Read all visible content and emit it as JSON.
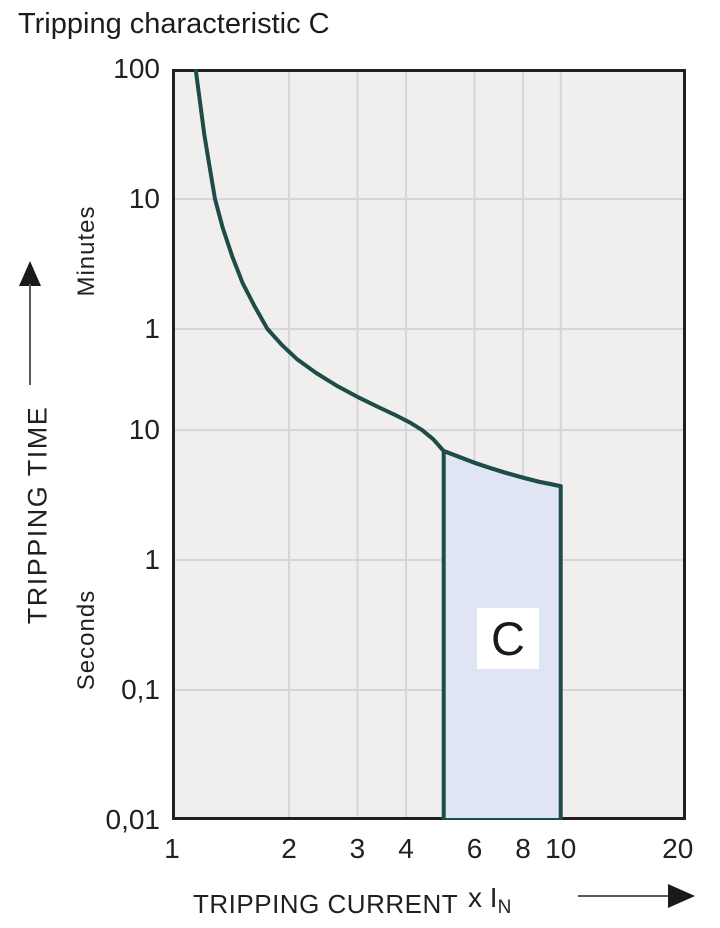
{
  "chart_data": {
    "type": "line",
    "title": "Tripping characteristic C",
    "x_axis": {
      "label": "TRIPPING CURRENT",
      "unit_prefix": "x I",
      "unit_subscript": "N",
      "scale": "log",
      "min": 1,
      "max": 21,
      "ticks": [
        {
          "value": 1,
          "label": "1"
        },
        {
          "value": 2,
          "label": "2"
        },
        {
          "value": 3,
          "label": "3"
        },
        {
          "value": 4,
          "label": "4"
        },
        {
          "value": 6,
          "label": "6"
        },
        {
          "value": 8,
          "label": "8"
        },
        {
          "value": 10,
          "label": "10"
        },
        {
          "value": 20,
          "label": "20"
        }
      ],
      "gridlines": [
        2,
        3,
        4,
        6,
        8,
        10
      ]
    },
    "y_axis": {
      "label": "TRIPPING TIME",
      "unit_top": "Minutes",
      "unit_bottom": "Seconds",
      "scale": "log",
      "max_seconds": 6000,
      "min_seconds": 0.01,
      "ticks": [
        {
          "seconds": 6000,
          "label": "100"
        },
        {
          "seconds": 600,
          "label": "10"
        },
        {
          "seconds": 60,
          "label": "1"
        },
        {
          "seconds": 10,
          "label": "10"
        },
        {
          "seconds": 1,
          "label": "1"
        },
        {
          "seconds": 0.1,
          "label": "0,1"
        },
        {
          "seconds": 0.01,
          "label": "0,01"
        }
      ],
      "gridlines_seconds": [
        600,
        60,
        10,
        1,
        0.1
      ]
    },
    "series": [
      {
        "name": "C characteristic tripping curve",
        "color": "#1d4c49",
        "points": [
          [
            1.15,
            6000
          ],
          [
            1.18,
            3400
          ],
          [
            1.21,
            1900
          ],
          [
            1.25,
            1050
          ],
          [
            1.29,
            600
          ],
          [
            1.35,
            360
          ],
          [
            1.43,
            215
          ],
          [
            1.52,
            135
          ],
          [
            1.63,
            90
          ],
          [
            1.76,
            60
          ],
          [
            1.92,
            45
          ],
          [
            2.1,
            35
          ],
          [
            2.35,
            27.5
          ],
          [
            2.65,
            22
          ],
          [
            3.0,
            18
          ],
          [
            3.4,
            15
          ],
          [
            3.8,
            12.8
          ],
          [
            4.1,
            11.4
          ],
          [
            4.4,
            10
          ],
          [
            4.7,
            8.5
          ],
          [
            5.0,
            6.9
          ],
          [
            5.5,
            6.2
          ],
          [
            6.0,
            5.6
          ],
          [
            6.6,
            5.1
          ],
          [
            7.2,
            4.7
          ],
          [
            8.0,
            4.3
          ],
          [
            8.8,
            4.0
          ],
          [
            9.4,
            3.85
          ],
          [
            10,
            3.7
          ]
        ]
      }
    ],
    "region": {
      "label": "C",
      "x_from": 5,
      "x_to": 10,
      "bottom_seconds": 0.01,
      "top_follows_curve": true,
      "fill": "#dfe5f3",
      "stroke": "#1d4c49"
    },
    "colors": {
      "plot_background": "#f0efee",
      "grid": "#d6d6da",
      "border": "#202020",
      "text": "#231f20"
    }
  }
}
